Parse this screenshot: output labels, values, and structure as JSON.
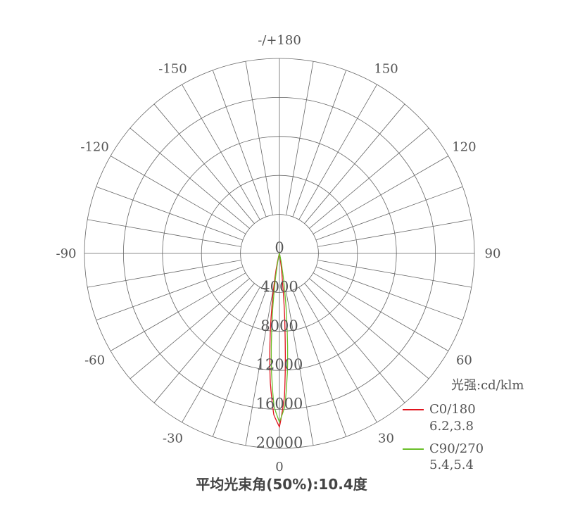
{
  "chart_data": {
    "type": "polar-line",
    "title": "平均光束角(50%):10.4度",
    "unit_label": "光强:cd/klm",
    "radial_range": [
      0,
      20000
    ],
    "radial_ticks": [
      "0",
      "4000",
      "8000",
      "12000",
      "16000",
      "20000"
    ],
    "radial_tick_values": [
      0,
      4000,
      8000,
      12000,
      16000,
      20000
    ],
    "angle_ticks": [
      {
        "angle": 180,
        "label": "-/+180"
      },
      {
        "angle": 150,
        "label": "150"
      },
      {
        "angle": -150,
        "label": "-150"
      },
      {
        "angle": 120,
        "label": "120"
      },
      {
        "angle": -120,
        "label": "-120"
      },
      {
        "angle": 90,
        "label": "90"
      },
      {
        "angle": -90,
        "label": "-90"
      },
      {
        "angle": 60,
        "label": "60"
      },
      {
        "angle": -60,
        "label": "-60"
      },
      {
        "angle": 30,
        "label": "30"
      },
      {
        "angle": -30,
        "label": "-30"
      },
      {
        "angle": 0,
        "label": "0"
      }
    ],
    "angular_grid_step": 10,
    "grid": true,
    "legend_position": "bottom-right",
    "series": [
      {
        "name": "C0/180",
        "beam_angles": "6.2,3.8",
        "color": "#e0141e",
        "angles": [
          -20,
          -16,
          -14,
          -12,
          -10,
          -8,
          -6,
          -4,
          -2,
          0,
          2,
          4,
          6,
          8,
          10,
          12,
          20
        ],
        "values": [
          0,
          180,
          520,
          1320,
          2940,
          5610,
          9300,
          13330,
          16560,
          17800,
          14690,
          8260,
          3160,
          830,
          150,
          0,
          0
        ]
      },
      {
        "name": "C90/270",
        "beam_angles": "5.4,5.4",
        "color": "#6abf2a",
        "angles": [
          -20,
          -16,
          -14,
          -12,
          -10,
          -8,
          -6,
          -4,
          -2,
          0,
          2,
          4,
          6,
          8,
          10,
          12,
          14,
          16,
          20
        ],
        "values": [
          0,
          0,
          160,
          570,
          1600,
          3780,
          7350,
          11830,
          15730,
          17300,
          15730,
          11830,
          7350,
          3780,
          1600,
          570,
          160,
          0,
          0
        ]
      }
    ]
  }
}
